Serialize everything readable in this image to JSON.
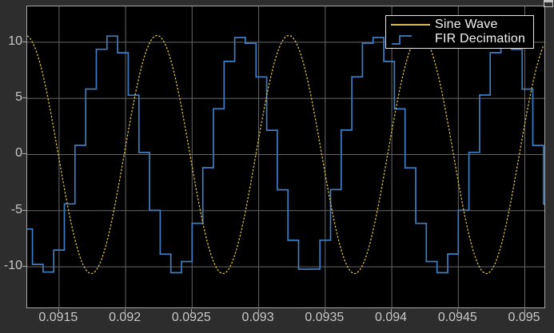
{
  "window": {
    "bg_color": "#2D2D2D",
    "corner_icon": "window-restore-icon"
  },
  "axes": {
    "bg_color": "#000000",
    "border_color": "#A8A8A8",
    "grid_color": "#666666",
    "tick_color": "#A8A8A8",
    "tick_label_color": "#C8C8C8"
  },
  "legend": {
    "bg_color": "#000000",
    "border_color": "#E6E6E6",
    "text_color": "#F2F2F2",
    "entries": [
      {
        "label": "Sine Wave",
        "marker": "line",
        "color": "#D9BE4A"
      },
      {
        "label": "FIR Decimation",
        "marker": "step",
        "color": "#3D7DC2"
      }
    ]
  },
  "chart_data": {
    "type": "line",
    "title": "",
    "xlabel": "",
    "ylabel": "",
    "grid": true,
    "legend_position": "top-right",
    "xlim": [
      0.0912605,
      0.095147
    ],
    "ylim": [
      -13.62,
      13.19
    ],
    "x_ticks": [
      0.0915,
      0.092,
      0.0925,
      0.093,
      0.0935,
      0.094,
      0.0945,
      0.095
    ],
    "x_tick_labels": [
      "0.0915",
      "0.092",
      "0.0925",
      "0.093",
      "0.0935",
      "0.094",
      "0.0945",
      "0.095"
    ],
    "y_ticks": [
      10,
      5,
      0,
      -5,
      -10
    ],
    "y_tick_labels": [
      "10",
      "5",
      "0",
      "-5",
      "-10"
    ],
    "series": [
      {
        "name": "Sine Wave",
        "waveform": "sine",
        "color": "#D9BE4A",
        "line_style": "dotted",
        "amplitude": 10.6,
        "period_s": 0.0009898,
        "peak_time_s": 0.0922365
      },
      {
        "name": "FIR Decimation",
        "waveform": "zero-order-hold-sine",
        "color": "#3D7DC2",
        "line_style": "solid",
        "amplitude": 10.55,
        "period_s": 0.0009898,
        "peak_time_s": 0.0918952,
        "sample_period_s": 8e-05,
        "sample_offset_s": 0.09146
      }
    ]
  }
}
